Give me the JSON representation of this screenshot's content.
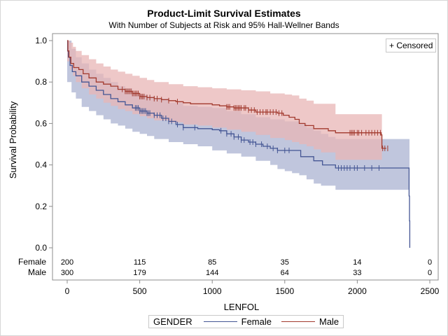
{
  "title": "Product-Limit Survival Estimates",
  "subtitle": "With Number of Subjects at Risk and 95% Hall-Wellner Bands",
  "censored_legend": "+ Censored",
  "legend": {
    "title": "GENDER",
    "items": [
      {
        "label": "Female",
        "color": "#445694"
      },
      {
        "label": "Male",
        "color": "#A23A2E"
      }
    ]
  },
  "colors": {
    "female_line": "#445694",
    "female_band": "#C0C6DD",
    "male_line": "#A23A2E",
    "male_band": "#E8B5B5",
    "axis": "#8c8c8c"
  },
  "chart_data": {
    "type": "line",
    "title": "Product-Limit Survival Estimates",
    "subtitle": "With Number of Subjects at Risk and 95% Hall-Wellner Bands",
    "xlabel": "LENFOL",
    "ylabel": "Survival Probability",
    "xlim": [
      0,
      2500
    ],
    "ylim": [
      0,
      1.0
    ],
    "xticks": [
      0,
      500,
      1000,
      1500,
      2000,
      2500
    ],
    "yticks": [
      0.0,
      0.2,
      0.4,
      0.6,
      0.8,
      1.0
    ],
    "ytick_labels": [
      "0.0",
      "0.2",
      "0.4",
      "0.6",
      "0.8",
      "1.0"
    ],
    "grid": false,
    "legend_position": "bottom",
    "step": true,
    "series": [
      {
        "name": "Female",
        "color": "#445694",
        "band_color": "#C0C6DD",
        "curve": [
          [
            0,
            1.0
          ],
          [
            3,
            0.95
          ],
          [
            8,
            0.92
          ],
          [
            20,
            0.88
          ],
          [
            35,
            0.85
          ],
          [
            60,
            0.83
          ],
          [
            100,
            0.8
          ],
          [
            150,
            0.78
          ],
          [
            200,
            0.76
          ],
          [
            250,
            0.74
          ],
          [
            300,
            0.72
          ],
          [
            350,
            0.705
          ],
          [
            400,
            0.69
          ],
          [
            450,
            0.675
          ],
          [
            500,
            0.66
          ],
          [
            550,
            0.65
          ],
          [
            600,
            0.64
          ],
          [
            650,
            0.625
          ],
          [
            700,
            0.61
          ],
          [
            750,
            0.595
          ],
          [
            800,
            0.58
          ],
          [
            900,
            0.575
          ],
          [
            1000,
            0.57
          ],
          [
            1050,
            0.565
          ],
          [
            1100,
            0.55
          ],
          [
            1150,
            0.535
          ],
          [
            1200,
            0.52
          ],
          [
            1250,
            0.51
          ],
          [
            1300,
            0.5
          ],
          [
            1350,
            0.49
          ],
          [
            1400,
            0.48
          ],
          [
            1450,
            0.47
          ],
          [
            1600,
            0.47
          ],
          [
            1610,
            0.44
          ],
          [
            1700,
            0.42
          ],
          [
            1760,
            0.4
          ],
          [
            1850,
            0.385
          ],
          [
            2355,
            0.385
          ],
          [
            2357,
            0.25
          ],
          [
            2360,
            0.13
          ],
          [
            2362,
            0.0
          ]
        ],
        "band_upper": [
          [
            0,
            1.0
          ],
          [
            30,
            0.96
          ],
          [
            60,
            0.92
          ],
          [
            100,
            0.89
          ],
          [
            150,
            0.86
          ],
          [
            200,
            0.84
          ],
          [
            250,
            0.82
          ],
          [
            300,
            0.8
          ],
          [
            350,
            0.78
          ],
          [
            400,
            0.77
          ],
          [
            450,
            0.75
          ],
          [
            500,
            0.74
          ],
          [
            550,
            0.73
          ],
          [
            600,
            0.72
          ],
          [
            700,
            0.7
          ],
          [
            800,
            0.685
          ],
          [
            900,
            0.68
          ],
          [
            1000,
            0.675
          ],
          [
            1100,
            0.66
          ],
          [
            1200,
            0.645
          ],
          [
            1300,
            0.63
          ],
          [
            1400,
            0.62
          ],
          [
            1500,
            0.61
          ],
          [
            1600,
            0.6
          ],
          [
            1650,
            0.58
          ],
          [
            1700,
            0.565
          ],
          [
            1750,
            0.55
          ],
          [
            1800,
            0.535
          ],
          [
            1850,
            0.525
          ],
          [
            2360,
            0.525
          ]
        ],
        "band_lower": [
          [
            0,
            0.8
          ],
          [
            30,
            0.75
          ],
          [
            60,
            0.72
          ],
          [
            100,
            0.68
          ],
          [
            150,
            0.66
          ],
          [
            200,
            0.64
          ],
          [
            250,
            0.62
          ],
          [
            300,
            0.6
          ],
          [
            350,
            0.59
          ],
          [
            400,
            0.575
          ],
          [
            450,
            0.56
          ],
          [
            500,
            0.55
          ],
          [
            550,
            0.54
          ],
          [
            600,
            0.525
          ],
          [
            700,
            0.51
          ],
          [
            800,
            0.5
          ],
          [
            900,
            0.49
          ],
          [
            1000,
            0.47
          ],
          [
            1100,
            0.455
          ],
          [
            1200,
            0.44
          ],
          [
            1300,
            0.42
          ],
          [
            1400,
            0.4
          ],
          [
            1450,
            0.38
          ],
          [
            1500,
            0.37
          ],
          [
            1550,
            0.36
          ],
          [
            1600,
            0.35
          ],
          [
            1650,
            0.33
          ],
          [
            1700,
            0.31
          ],
          [
            1750,
            0.3
          ],
          [
            1850,
            0.28
          ],
          [
            2360,
            0.28
          ],
          [
            2360,
            0.0
          ]
        ],
        "censored": [
          470,
          480,
          490,
          500,
          510,
          520,
          530,
          540,
          550,
          560,
          570,
          600,
          620,
          640,
          660,
          680,
          700,
          720,
          760,
          800,
          880,
          1060,
          1100,
          1130,
          1150,
          1180,
          1200,
          1220,
          1260,
          1280,
          1300,
          1340,
          1380,
          1420,
          1450,
          1500,
          1530,
          1870,
          1890,
          1910,
          1930,
          1950,
          1980,
          2000,
          2050,
          2100,
          2150
        ]
      },
      {
        "name": "Male",
        "color": "#A23A2E",
        "band_color": "#E8B5B5",
        "curve": [
          [
            0,
            1.0
          ],
          [
            5,
            0.95
          ],
          [
            12,
            0.92
          ],
          [
            25,
            0.89
          ],
          [
            45,
            0.87
          ],
          [
            80,
            0.86
          ],
          [
            110,
            0.84
          ],
          [
            150,
            0.82
          ],
          [
            200,
            0.8
          ],
          [
            250,
            0.79
          ],
          [
            300,
            0.78
          ],
          [
            350,
            0.765
          ],
          [
            400,
            0.755
          ],
          [
            450,
            0.745
          ],
          [
            500,
            0.73
          ],
          [
            550,
            0.725
          ],
          [
            600,
            0.72
          ],
          [
            650,
            0.715
          ],
          [
            700,
            0.71
          ],
          [
            750,
            0.705
          ],
          [
            800,
            0.7
          ],
          [
            850,
            0.695
          ],
          [
            1000,
            0.69
          ],
          [
            1050,
            0.685
          ],
          [
            1100,
            0.68
          ],
          [
            1150,
            0.675
          ],
          [
            1250,
            0.665
          ],
          [
            1300,
            0.655
          ],
          [
            1450,
            0.65
          ],
          [
            1490,
            0.64
          ],
          [
            1530,
            0.63
          ],
          [
            1570,
            0.62
          ],
          [
            1600,
            0.6
          ],
          [
            1640,
            0.59
          ],
          [
            1700,
            0.575
          ],
          [
            1800,
            0.565
          ],
          [
            1850,
            0.555
          ],
          [
            2165,
            0.545
          ],
          [
            2170,
            0.48
          ],
          [
            2200,
            0.48
          ]
        ],
        "band_upper": [
          [
            0,
            1.0
          ],
          [
            20,
            0.99
          ],
          [
            40,
            0.97
          ],
          [
            60,
            0.95
          ],
          [
            100,
            0.93
          ],
          [
            150,
            0.91
          ],
          [
            200,
            0.89
          ],
          [
            250,
            0.875
          ],
          [
            300,
            0.86
          ],
          [
            350,
            0.85
          ],
          [
            400,
            0.84
          ],
          [
            450,
            0.83
          ],
          [
            500,
            0.82
          ],
          [
            550,
            0.81
          ],
          [
            600,
            0.8
          ],
          [
            700,
            0.79
          ],
          [
            800,
            0.78
          ],
          [
            900,
            0.775
          ],
          [
            1000,
            0.77
          ],
          [
            1100,
            0.765
          ],
          [
            1200,
            0.76
          ],
          [
            1300,
            0.755
          ],
          [
            1400,
            0.745
          ],
          [
            1500,
            0.74
          ],
          [
            1550,
            0.735
          ],
          [
            1600,
            0.72
          ],
          [
            1650,
            0.71
          ],
          [
            1700,
            0.695
          ],
          [
            1850,
            0.645
          ],
          [
            2170,
            0.645
          ]
        ],
        "band_lower": [
          [
            0,
            0.9
          ],
          [
            20,
            0.86
          ],
          [
            40,
            0.83
          ],
          [
            60,
            0.8
          ],
          [
            100,
            0.77
          ],
          [
            150,
            0.74
          ],
          [
            200,
            0.72
          ],
          [
            250,
            0.7
          ],
          [
            300,
            0.685
          ],
          [
            350,
            0.67
          ],
          [
            400,
            0.66
          ],
          [
            450,
            0.645
          ],
          [
            500,
            0.635
          ],
          [
            550,
            0.625
          ],
          [
            600,
            0.615
          ],
          [
            700,
            0.605
          ],
          [
            800,
            0.595
          ],
          [
            900,
            0.59
          ],
          [
            1000,
            0.58
          ],
          [
            1100,
            0.57
          ],
          [
            1200,
            0.56
          ],
          [
            1300,
            0.545
          ],
          [
            1400,
            0.53
          ],
          [
            1500,
            0.52
          ],
          [
            1550,
            0.51
          ],
          [
            1600,
            0.5
          ],
          [
            1650,
            0.49
          ],
          [
            1700,
            0.475
          ],
          [
            1750,
            0.46
          ],
          [
            1850,
            0.425
          ],
          [
            2170,
            0.425
          ]
        ],
        "censored": [
          380,
          400,
          410,
          420,
          430,
          440,
          450,
          460,
          470,
          480,
          490,
          500,
          510,
          520,
          530,
          550,
          570,
          600,
          620,
          650,
          700,
          760,
          1100,
          1110,
          1120,
          1150,
          1160,
          1170,
          1180,
          1190,
          1200,
          1220,
          1230,
          1250,
          1270,
          1290,
          1310,
          1330,
          1350,
          1370,
          1380,
          1400,
          1420,
          1440,
          1460,
          1480,
          1950,
          1960,
          1970,
          1980,
          2000,
          2010,
          2030,
          2060,
          2080,
          2100,
          2120,
          2140,
          2160,
          2175,
          2190,
          2210
        ]
      }
    ],
    "at_risk": {
      "times": [
        0,
        500,
        1000,
        1500,
        2000,
        2500
      ],
      "groups": [
        {
          "name": "Female",
          "counts": [
            200,
            115,
            85,
            35,
            14,
            0
          ]
        },
        {
          "name": "Male",
          "counts": [
            300,
            179,
            144,
            64,
            33,
            0
          ]
        }
      ]
    }
  }
}
